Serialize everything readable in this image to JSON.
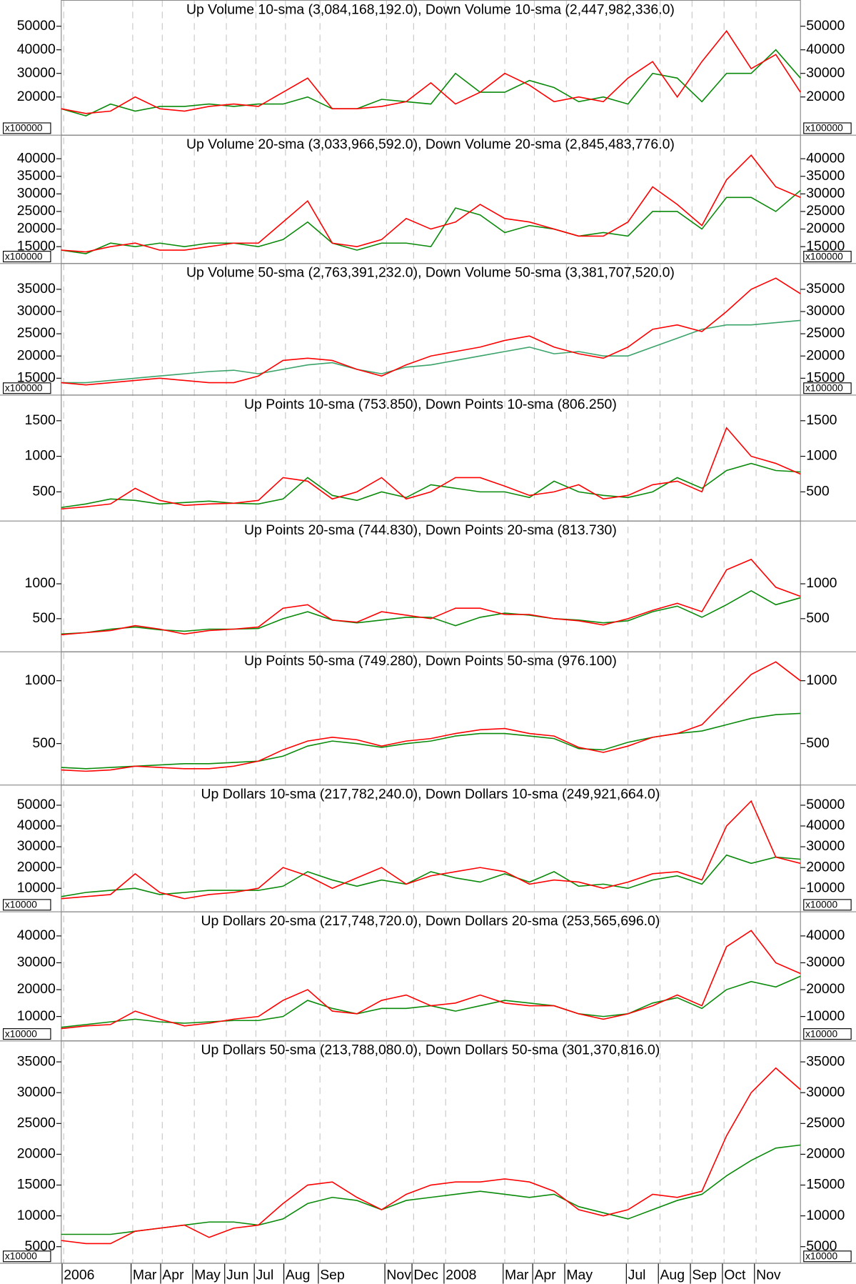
{
  "chart_data": [
    {
      "type": "line",
      "title": "Up Volume 10-sma (3,084,168,192.0), Down Volume 10-sma (2,447,982,336.0)",
      "scale_label": "x100000",
      "xlim": [
        0,
        30
      ],
      "ylim": [
        3800,
        61000
      ],
      "yticks": [
        20000,
        30000,
        40000,
        50000
      ],
      "series": [
        {
          "name": "Up Volume 10-sma",
          "color": "#0a8a0a",
          "values": [
            15000,
            12000,
            17000,
            14000,
            16000,
            16000,
            17000,
            16000,
            17000,
            17000,
            20000,
            15000,
            15000,
            19000,
            18000,
            17000,
            30000,
            22000,
            22000,
            27000,
            24000,
            18000,
            20000,
            17000,
            30000,
            28000,
            18000,
            30000,
            30000,
            40000,
            28000
          ]
        },
        {
          "name": "Down Volume 10-sma",
          "color": "#ff0000",
          "values": [
            15000,
            13000,
            14000,
            20000,
            15000,
            14000,
            16000,
            17000,
            16000,
            22000,
            28000,
            15000,
            15000,
            16000,
            18000,
            26000,
            17000,
            22000,
            30000,
            25000,
            18000,
            20000,
            18000,
            28000,
            35000,
            20000,
            35000,
            48000,
            32000,
            38000,
            22000
          ]
        }
      ]
    },
    {
      "type": "line",
      "title": "Up Volume 20-sma (3,033,966,592.0), Down Volume 20-sma (2,845,483,776.0)",
      "scale_label": "x100000",
      "xlim": [
        0,
        30
      ],
      "ylim": [
        10200,
        46700
      ],
      "yticks": [
        15000,
        20000,
        25000,
        30000,
        35000,
        40000
      ],
      "series": [
        {
          "name": "Up Volume 20-sma",
          "color": "#0a8a0a",
          "values": [
            14000,
            13000,
            16000,
            15000,
            16000,
            15000,
            16000,
            16000,
            15000,
            17000,
            22000,
            16000,
            14000,
            16000,
            16000,
            15000,
            26000,
            24000,
            19000,
            21000,
            20000,
            18000,
            19000,
            18000,
            25000,
            25000,
            20000,
            29000,
            29000,
            25000,
            31000
          ]
        },
        {
          "name": "Down Volume 20-sma",
          "color": "#ff0000",
          "values": [
            14000,
            13500,
            15000,
            16000,
            14000,
            14000,
            15000,
            16000,
            16000,
            22000,
            28000,
            16000,
            15000,
            17000,
            23000,
            20000,
            22000,
            27000,
            23000,
            22000,
            20000,
            18000,
            18000,
            22000,
            32000,
            27000,
            21000,
            34000,
            41000,
            32000,
            29000
          ]
        }
      ]
    },
    {
      "type": "line",
      "title": "Up Volume 50-sma (2,763,391,232.0), Down Volume 50-sma (3,381,707,520.0)",
      "scale_label": "x100000",
      "xlim": [
        0,
        30
      ],
      "ylim": [
        11200,
        40800
      ],
      "yticks": [
        15000,
        20000,
        25000,
        30000,
        35000
      ],
      "series": [
        {
          "name": "Up Volume 50-sma",
          "color": "#3aa36a",
          "values": [
            14000,
            14000,
            14500,
            15000,
            15500,
            16000,
            16500,
            16800,
            16000,
            17000,
            18000,
            18500,
            17000,
            16000,
            17500,
            18000,
            19000,
            20000,
            21000,
            22000,
            20500,
            21000,
            20000,
            20000,
            22000,
            24000,
            26000,
            27000,
            27000,
            27500,
            28000
          ]
        },
        {
          "name": "Down Volume 50-sma",
          "color": "#ff0000",
          "values": [
            14000,
            13500,
            14000,
            14500,
            15000,
            14500,
            14000,
            14000,
            15500,
            19000,
            19500,
            19000,
            17000,
            15500,
            18000,
            20000,
            21000,
            22000,
            23500,
            24500,
            22000,
            20500,
            19500,
            22000,
            26000,
            27000,
            25500,
            30000,
            35000,
            37500,
            34000
          ]
        }
      ]
    },
    {
      "type": "line",
      "title": "Up Points 10-sma (753.850), Down Points 10-sma (806.250)",
      "xlim": [
        0,
        30
      ],
      "ylim": [
        90,
        1860
      ],
      "yticks": [
        500,
        1000,
        1500
      ],
      "series": [
        {
          "name": "Up Points 10-sma",
          "color": "#0a8a0a",
          "values": [
            280,
            330,
            400,
            380,
            330,
            350,
            370,
            340,
            330,
            400,
            700,
            450,
            380,
            500,
            420,
            600,
            550,
            500,
            500,
            420,
            650,
            500,
            450,
            420,
            500,
            700,
            550,
            800,
            900,
            800,
            780
          ]
        },
        {
          "name": "Down Points 10-sma",
          "color": "#ff0000",
          "values": [
            260,
            290,
            330,
            550,
            380,
            310,
            330,
            340,
            380,
            700,
            650,
            400,
            500,
            700,
            400,
            500,
            700,
            700,
            580,
            450,
            500,
            600,
            400,
            450,
            600,
            650,
            500,
            1400,
            1000,
            900,
            750
          ]
        }
      ]
    },
    {
      "type": "line",
      "title": "Up Points 20-sma (744.830), Down Points 20-sma (813.730)",
      "xlim": [
        0,
        30
      ],
      "ylim": [
        25,
        1900
      ],
      "yticks": [
        500,
        1000
      ],
      "series": [
        {
          "name": "Up Points 20-sma",
          "color": "#0a8a0a",
          "values": [
            280,
            300,
            350,
            380,
            340,
            320,
            350,
            350,
            360,
            500,
            600,
            480,
            440,
            480,
            520,
            520,
            400,
            520,
            580,
            550,
            500,
            480,
            440,
            470,
            600,
            680,
            520,
            700,
            900,
            700,
            800
          ]
        },
        {
          "name": "Down Points 20-sma",
          "color": "#ff0000",
          "values": [
            270,
            300,
            330,
            400,
            350,
            280,
            330,
            350,
            380,
            650,
            700,
            480,
            450,
            600,
            550,
            500,
            650,
            650,
            560,
            560,
            500,
            470,
            410,
            500,
            620,
            720,
            600,
            1200,
            1350,
            950,
            820
          ]
        }
      ]
    },
    {
      "type": "line",
      "title": "Up Points 50-sma (749.280), Down Points 50-sma (976.100)",
      "xlim": [
        0,
        30
      ],
      "ylim": [
        170,
        1230
      ],
      "yticks": [
        500,
        1000
      ],
      "series": [
        {
          "name": "Up Points 50-sma",
          "color": "#0a8a0a",
          "values": [
            310,
            300,
            310,
            320,
            330,
            340,
            340,
            350,
            360,
            400,
            480,
            520,
            500,
            470,
            500,
            520,
            560,
            580,
            580,
            560,
            540,
            460,
            450,
            510,
            550,
            580,
            600,
            650,
            700,
            730,
            740
          ]
        },
        {
          "name": "Down Points 50-sma",
          "color": "#ff0000",
          "values": [
            290,
            280,
            290,
            320,
            310,
            300,
            300,
            320,
            360,
            450,
            520,
            550,
            530,
            480,
            520,
            540,
            580,
            610,
            620,
            580,
            560,
            470,
            430,
            480,
            550,
            580,
            650,
            850,
            1050,
            1150,
            1000
          ]
        }
      ]
    },
    {
      "type": "line",
      "title": "Up Dollars 10-sma (217,782,240.0), Down Dollars 10-sma (249,921,664.0)",
      "scale_label": "x10000",
      "xlim": [
        0,
        30
      ],
      "ylim": [
        -1300,
        59700
      ],
      "yticks": [
        10000,
        20000,
        30000,
        40000,
        50000
      ],
      "series": [
        {
          "name": "Up Dollars 10-sma",
          "color": "#0a8a0a",
          "values": [
            6000,
            8000,
            9000,
            10000,
            7000,
            8000,
            9000,
            9000,
            9000,
            11000,
            18000,
            14000,
            11000,
            14000,
            12000,
            18000,
            15000,
            13000,
            17000,
            13000,
            18000,
            11000,
            12000,
            10000,
            14000,
            16000,
            12000,
            26000,
            22000,
            25000,
            24000
          ]
        },
        {
          "name": "Down Dollars 10-sma",
          "color": "#ff0000",
          "values": [
            5000,
            6000,
            7000,
            17000,
            8000,
            5000,
            7000,
            8000,
            10000,
            20000,
            16000,
            10000,
            15000,
            20000,
            12000,
            16000,
            18000,
            20000,
            18000,
            12000,
            14000,
            13000,
            10000,
            13000,
            17000,
            18000,
            14000,
            40000,
            52000,
            25000,
            22000
          ]
        }
      ]
    },
    {
      "type": "line",
      "title": "Up Dollars 20-sma (217,748,720.0), Down Dollars 20-sma (253,565,696.0)",
      "scale_label": "x10000",
      "xlim": [
        0,
        30
      ],
      "ylim": [
        900,
        49000
      ],
      "yticks": [
        10000,
        20000,
        30000,
        40000
      ],
      "series": [
        {
          "name": "Up Dollars 20-sma",
          "color": "#0a8a0a",
          "values": [
            6000,
            7000,
            8000,
            9000,
            8000,
            7500,
            8000,
            8500,
            8500,
            10000,
            16000,
            13000,
            11000,
            13000,
            13000,
            14000,
            12000,
            14000,
            16000,
            15000,
            14000,
            11000,
            10000,
            11000,
            15000,
            17000,
            13000,
            20000,
            23000,
            21000,
            25000
          ]
        },
        {
          "name": "Down Dollars 20-sma",
          "color": "#ff0000",
          "values": [
            5500,
            6500,
            7000,
            12000,
            9000,
            6500,
            7500,
            9000,
            10000,
            16000,
            20000,
            12000,
            11000,
            16000,
            18000,
            14000,
            15000,
            18000,
            15000,
            14000,
            14000,
            11000,
            9000,
            11000,
            14000,
            18000,
            14000,
            36000,
            42000,
            30000,
            26000
          ]
        }
      ]
    },
    {
      "type": "line",
      "title": "Up Dollars 50-sma (213,788,080.0), Down Dollars 50-sma (301,370,816.0)",
      "scale_label": "x10000",
      "xlim": [
        0,
        30
      ],
      "ylim": [
        2300,
        38400
      ],
      "yticks": [
        5000,
        10000,
        15000,
        20000,
        25000,
        30000,
        35000
      ],
      "xticks": [
        {
          "value": 0.1,
          "label": "2006"
        },
        {
          "value": 2.9,
          "label": "Mar"
        },
        {
          "value": 4.1,
          "label": "Apr"
        },
        {
          "value": 5.4,
          "label": "May"
        },
        {
          "value": 6.7,
          "label": "Jun"
        },
        {
          "value": 7.9,
          "label": "Jul"
        },
        {
          "value": 9.1,
          "label": "Aug"
        },
        {
          "value": 10.5,
          "label": "Sep"
        },
        {
          "value": 13.2,
          "label": "Nov"
        },
        {
          "value": 14.3,
          "label": "Dec"
        },
        {
          "value": 15.6,
          "label": "2008"
        },
        {
          "value": 18.0,
          "label": "Mar"
        },
        {
          "value": 19.2,
          "label": "Apr"
        },
        {
          "value": 20.5,
          "label": "May"
        },
        {
          "value": 23.0,
          "label": "Jul"
        },
        {
          "value": 24.3,
          "label": "Aug"
        },
        {
          "value": 25.6,
          "label": "Sep"
        },
        {
          "value": 26.9,
          "label": "Oct"
        },
        {
          "value": 28.2,
          "label": "Nov"
        }
      ],
      "series": [
        {
          "name": "Up Dollars 50-sma",
          "color": "#0a8a0a",
          "values": [
            7000,
            7000,
            7000,
            7500,
            8000,
            8500,
            9000,
            9000,
            8500,
            9500,
            12000,
            13000,
            12500,
            11000,
            12500,
            13000,
            13500,
            14000,
            13500,
            13000,
            13500,
            11500,
            10500,
            9500,
            11000,
            12500,
            13500,
            16500,
            19000,
            21000,
            21500
          ]
        },
        {
          "name": "Down Dollars 50-sma",
          "color": "#ff0000",
          "values": [
            6000,
            5500,
            5500,
            7500,
            8000,
            8500,
            6500,
            8000,
            8500,
            12000,
            15000,
            15500,
            13000,
            11000,
            13500,
            15000,
            15500,
            15500,
            16000,
            15500,
            14000,
            11000,
            10000,
            11000,
            13500,
            13000,
            14000,
            23000,
            30000,
            34000,
            30500
          ]
        }
      ]
    }
  ]
}
